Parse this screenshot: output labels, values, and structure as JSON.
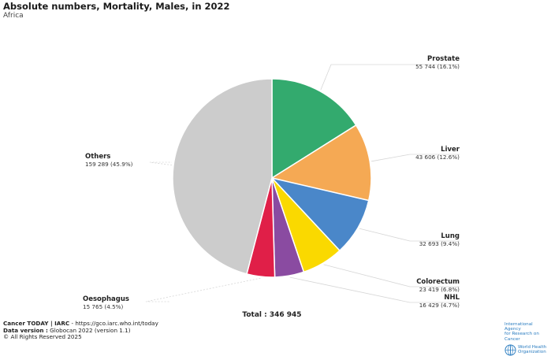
{
  "title": "Absolute numbers, Mortality, Males, in 2022",
  "subtitle": "Africa",
  "chart_data": {
    "type": "pie",
    "title": "Absolute numbers, Mortality, Males, in 2022",
    "subtitle": "Africa",
    "total_label": "Total : 346 945",
    "total": 346945,
    "slices": [
      {
        "name": "Prostate",
        "value": 55744,
        "value_label": "55 744 (16.1%)",
        "color": "#33aa6e"
      },
      {
        "name": "Liver",
        "value": 43606,
        "value_label": "43 606 (12.6%)",
        "color": "#f5a954"
      },
      {
        "name": "Lung",
        "value": 32693,
        "value_label": "32 693 (9.4%)",
        "color": "#4a87c9"
      },
      {
        "name": "Colorectum",
        "value": 23419,
        "value_label": "23 419 (6.8%)",
        "color": "#fad900"
      },
      {
        "name": "NHL",
        "value": 16429,
        "value_label": "16 429 (4.7%)",
        "color": "#8a4ba1"
      },
      {
        "name": "Oesophagus",
        "value": 15765,
        "value_label": "15 765 (4.5%)",
        "color": "#e01f48"
      },
      {
        "name": "Others",
        "value": 159289,
        "value_label": "159 289 (45.9%)",
        "color": "#cccccc"
      }
    ]
  },
  "footer": {
    "line1_bold": "Cancer TODAY | IARC",
    "line1_rest": " - https://gco.iarc.who.int/today",
    "line2_bold": "Data version :",
    "line2_rest": " Globocan 2022 (version 1.1)",
    "line3": "© All Rights Reserved 2025"
  },
  "logos": {
    "iarc_line1": "International Agency",
    "iarc_line2": "for Research on Cancer",
    "who_line1": "World Health",
    "who_line2": "Organization"
  }
}
